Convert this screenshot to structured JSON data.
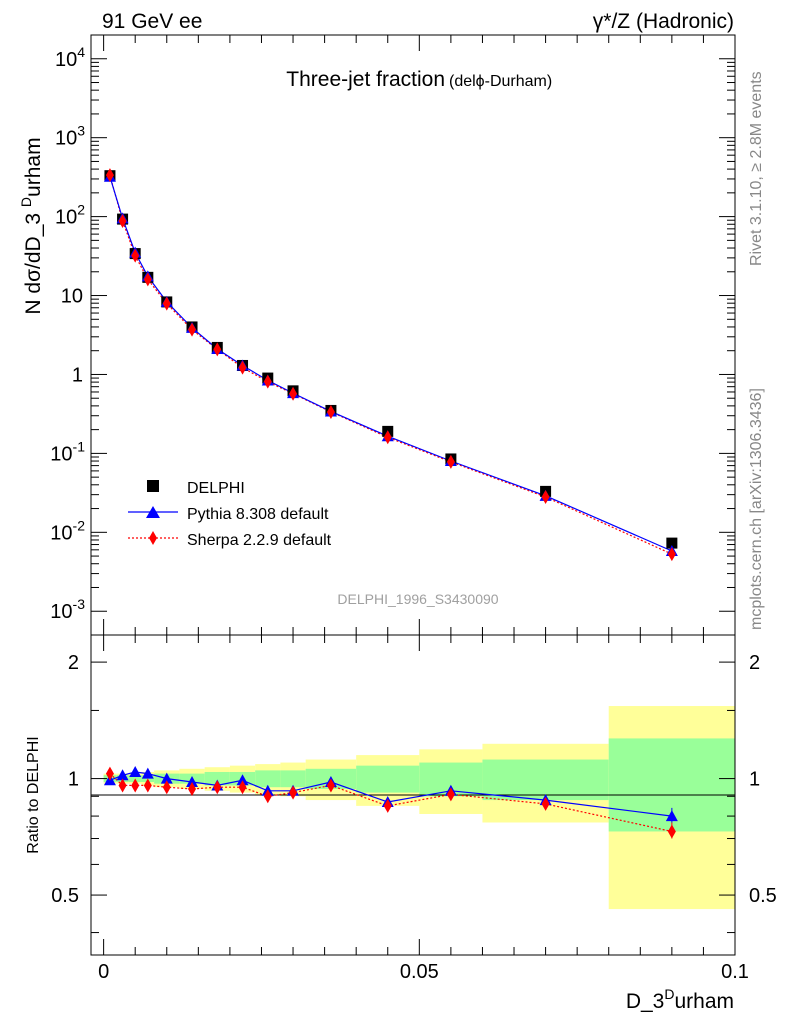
{
  "header": {
    "left": "91 GeV ee",
    "right": "γ*/Z (Hadronic)"
  },
  "side_text": {
    "rivet": "Rivet 3.1.10, ≥ 2.8M events",
    "mcplots": "mcplots.cern.ch [arXiv:1306.3436]"
  },
  "colors": {
    "data": "#000000",
    "pythia": "#0000ff",
    "sherpa": "#ff0000",
    "band_inner": "#99ff99",
    "band_outer": "#ffff99"
  },
  "chart_data": [
    {
      "type": "scatter",
      "log_y": true,
      "title": "Three-jet fraction",
      "title_suffix": "(delϕ-Durham)",
      "watermark": "DELPHI_1996_S3430090",
      "xlabel": "D_3Durham",
      "ylabel": "N dσ/dD_3Durham",
      "xlim": [
        -0.002,
        0.1
      ],
      "ylim": [
        0.0005,
        20000
      ],
      "y_ticks": [
        "10^-3",
        "10^-2",
        "10^-1",
        "1",
        "10",
        "10^2",
        "10^3",
        "10^4"
      ],
      "legend_position": "bottom-left",
      "x": [
        0.001,
        0.003,
        0.005,
        0.007,
        0.01,
        0.014,
        0.018,
        0.022,
        0.026,
        0.03,
        0.036,
        0.045,
        0.055,
        0.07,
        0.09
      ],
      "series": [
        {
          "name": "DELPHI",
          "marker": "square",
          "values": [
            330,
            93,
            34,
            17,
            8.3,
            4.0,
            2.2,
            1.3,
            0.9,
            0.62,
            0.35,
            0.19,
            0.085,
            0.033,
            0.0073
          ]
        },
        {
          "name": "Pythia 8.308 default",
          "marker": "triangle",
          "line": "solid",
          "values": [
            320,
            95,
            35,
            17.5,
            8.3,
            3.9,
            2.1,
            1.3,
            0.84,
            0.58,
            0.34,
            0.165,
            0.08,
            0.029,
            0.0058
          ]
        },
        {
          "name": "Sherpa 2.2.9 default",
          "marker": "diamond",
          "line": "dotted",
          "values": [
            335,
            88,
            32,
            16,
            7.9,
            3.7,
            2.08,
            1.22,
            0.81,
            0.57,
            0.335,
            0.16,
            0.078,
            0.028,
            0.0053
          ]
        }
      ]
    },
    {
      "type": "line",
      "ylabel": "Ratio to DELPHI",
      "xlabel": "D_3Durham",
      "xlim": [
        -0.002,
        0.1
      ],
      "ylim": [
        0.35,
        2.35
      ],
      "x_ticks": [
        "0",
        "0.05",
        "0.1"
      ],
      "y_ticks": [
        "0.5",
        "1",
        "2"
      ],
      "bands": {
        "edges": [
          0,
          0.002,
          0.004,
          0.006,
          0.008,
          0.012,
          0.016,
          0.02,
          0.024,
          0.028,
          0.032,
          0.04,
          0.05,
          0.06,
          0.08,
          0.1
        ],
        "inner": [
          0.02,
          0.02,
          0.02,
          0.02,
          0.03,
          0.03,
          0.04,
          0.04,
          0.05,
          0.05,
          0.06,
          0.08,
          0.1,
          0.12,
          0.27
        ],
        "outer": [
          0.03,
          0.03,
          0.03,
          0.04,
          0.05,
          0.06,
          0.07,
          0.08,
          0.09,
          0.1,
          0.12,
          0.15,
          0.19,
          0.23,
          0.54
        ]
      },
      "x": [
        0.001,
        0.003,
        0.005,
        0.007,
        0.01,
        0.014,
        0.018,
        0.022,
        0.026,
        0.03,
        0.036,
        0.045,
        0.055,
        0.07,
        0.09
      ],
      "series": [
        {
          "name": "Pythia 8.308 default",
          "values": [
            0.99,
            1.02,
            1.04,
            1.03,
            1.0,
            0.98,
            0.96,
            0.99,
            0.93,
            0.93,
            0.98,
            0.87,
            0.93,
            0.88,
            0.8
          ]
        },
        {
          "name": "Sherpa 2.2.9 default",
          "values": [
            1.03,
            0.96,
            0.96,
            0.96,
            0.95,
            0.94,
            0.95,
            0.95,
            0.9,
            0.92,
            0.96,
            0.85,
            0.91,
            0.86,
            0.73
          ]
        }
      ]
    }
  ]
}
